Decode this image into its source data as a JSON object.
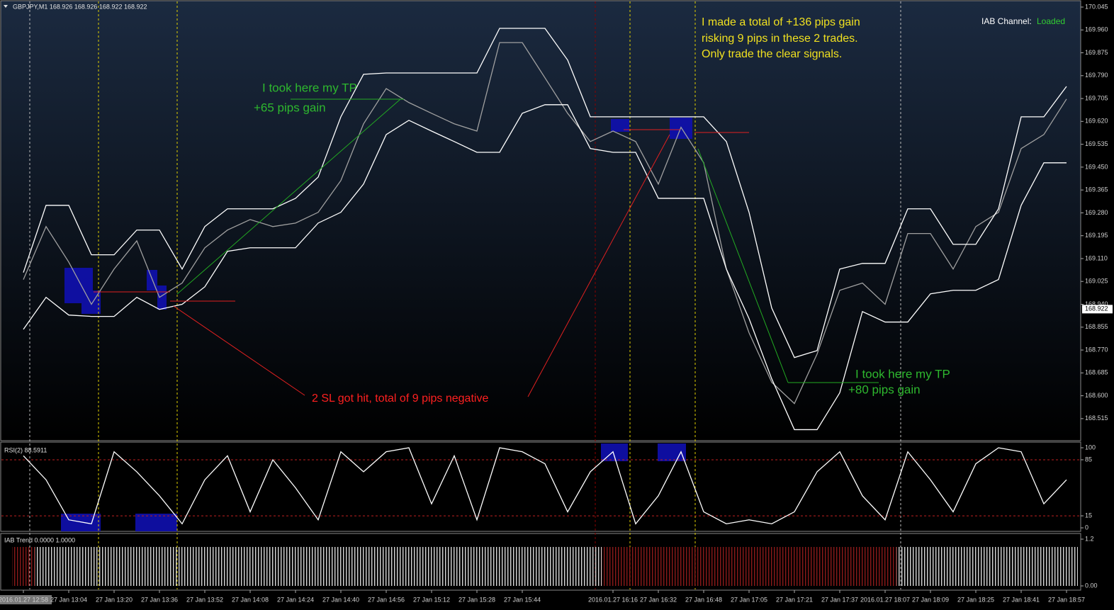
{
  "chart_data": [
    {
      "type": "line",
      "title": "GBPJPY,M1  168.926 168.926 168.922 168.922",
      "indicator_label": "IAB Channel:",
      "indicator_status": "Loaded",
      "summary_note": [
        "I made a total of +136 pips gain",
        "risking 9 pips in these 2 trades.",
        "Only trade the clear signals."
      ],
      "tp_note_1": [
        "I took here my TP",
        "+65 pips gain"
      ],
      "sl_note": "2 SL got hit, total of 9 pips negative",
      "tp_note_2": [
        "I took here my TP",
        "+80 pips gain"
      ],
      "last_price": 168.922,
      "categories": [
        "2016.01.27 12:58",
        null,
        "27 Jan 13:04",
        null,
        "27 Jan 13:20",
        null,
        "27 Jan 13:36",
        null,
        "27 Jan 13:52",
        null,
        "27 Jan 14:08",
        null,
        "27 Jan 14:24",
        null,
        "27 Jan 14:40",
        null,
        "27 Jan 14:56",
        null,
        "27 Jan 15:12",
        null,
        "27 Jan 15:28",
        null,
        "27 Jan 15:44",
        null,
        null,
        null,
        "2016.01.27 16:16",
        null,
        "27 Jan 16:32",
        null,
        "27 Jan 16:48",
        null,
        "27 Jan 17:05",
        null,
        "27 Jan 17:21",
        null,
        "27 Jan 17:37",
        null,
        "2016.01.27 18:07",
        null,
        "27 Jan 18:09",
        null,
        "27 Jan 18:25",
        null,
        "27 Jan 18:41",
        null,
        "27 Jan 18:57"
      ],
      "series": [
        {
          "color": "#a0a0a0",
          "values": [
            169.032,
            169.229,
            169.097,
            168.94,
            169.071,
            169.176,
            168.966,
            169.019,
            169.15,
            169.216,
            169.255,
            169.229,
            169.242,
            169.282,
            169.4,
            169.611,
            169.742,
            169.69,
            169.65,
            169.611,
            169.584,
            169.913,
            169.913,
            169.782,
            169.65,
            169.545,
            169.584,
            169.545,
            169.387,
            169.598,
            169.466,
            169.071,
            168.834,
            168.65,
            168.571,
            168.755,
            168.992,
            169.019,
            168.94,
            169.203,
            169.203,
            169.071,
            169.229,
            169.282,
            169.519,
            169.571,
            169.703
          ]
        },
        {
          "color": "#ffffff",
          "values": [
            169.058,
            169.308,
            169.308,
            169.124,
            169.124,
            169.216,
            169.216,
            169.071,
            169.229,
            169.295,
            169.295,
            169.295,
            169.334,
            169.413,
            169.637,
            169.795,
            169.8,
            169.8,
            169.8,
            169.8,
            169.8,
            169.966,
            169.966,
            169.966,
            169.848,
            169.637,
            169.637,
            169.637,
            169.637,
            169.637,
            169.637,
            169.545,
            169.282,
            168.926,
            168.742,
            168.768,
            169.071,
            169.092,
            169.092,
            169.295,
            169.295,
            169.163,
            169.163,
            169.295,
            169.637,
            169.637,
            169.75
          ]
        },
        {
          "color": "#ffffff",
          "values": [
            168.847,
            168.966,
            168.9,
            168.895,
            168.895,
            168.966,
            168.921,
            168.94,
            169.005,
            169.137,
            169.15,
            169.15,
            169.15,
            169.242,
            169.282,
            169.387,
            169.571,
            169.624,
            169.584,
            169.545,
            169.505,
            169.505,
            169.65,
            169.682,
            169.682,
            169.519,
            169.505,
            169.505,
            169.334,
            169.334,
            169.334,
            169.071,
            168.887,
            168.663,
            168.474,
            168.474,
            168.611,
            168.913,
            168.874,
            168.874,
            168.979,
            168.992,
            168.992,
            169.032,
            169.308,
            169.466,
            169.466
          ]
        }
      ],
      "ylim": [
        168.433,
        170.066
      ],
      "yticks": [
        168.515,
        {
          "value": 168.6,
          "label": "168.600"
        },
        168.685,
        {
          "value": 168.77,
          "label": "168.770"
        },
        168.855,
        {
          "value": 168.94,
          "label": "168.940"
        },
        169.025,
        {
          "value": 169.11,
          "label": "169.110"
        },
        169.195,
        {
          "value": 169.28,
          "label": "169.280"
        },
        169.365,
        {
          "value": 169.45,
          "label": "169.450"
        },
        169.535,
        {
          "value": 169.62,
          "label": "169.620"
        },
        169.705,
        {
          "value": 169.79,
          "label": "169.790"
        },
        169.875,
        {
          "value": 169.96,
          "label": "169.960"
        },
        170.045
      ]
    },
    {
      "type": "line",
      "title": "RSI(2) 88.5911",
      "color": "#ffffff",
      "values": [
        90,
        60,
        10,
        5,
        95,
        70,
        40,
        5,
        60,
        90,
        20,
        85,
        50,
        10,
        95,
        70,
        95,
        100,
        30,
        90,
        10,
        100,
        95,
        80,
        20,
        70,
        95,
        5,
        40,
        95,
        20,
        5,
        10,
        5,
        20,
        70,
        95,
        40,
        10,
        95,
        60,
        20,
        80,
        100,
        95,
        30,
        60
      ],
      "ylim": [
        -4.4,
        106.2
      ],
      "yticks": [
        0,
        15,
        85,
        100
      ],
      "levels": [
        15,
        85
      ],
      "level_color": "#c02020"
    },
    {
      "type": "bar",
      "title": "IAB Trend 0.0000 1.0000",
      "values": [
        1,
        1,
        1,
        1,
        1,
        1,
        1,
        1,
        1,
        1,
        1,
        1,
        1,
        1,
        1,
        1,
        1,
        1,
        1,
        1,
        1,
        1,
        1,
        1,
        1,
        1,
        1,
        1,
        1,
        1,
        1,
        1,
        1,
        1,
        1,
        1,
        1,
        1,
        1,
        1,
        1,
        1,
        1,
        1,
        1,
        1,
        1
      ],
      "colors": [
        "#8b1a1a",
        "#d8d8d8",
        "#d8d8d8",
        "#d8d8d8",
        "#d8d8d8",
        "#d8d8d8",
        "#d8d8d8",
        "#d8d8d8",
        "#d8d8d8",
        "#d8d8d8",
        "#d8d8d8",
        "#d8d8d8",
        "#d8d8d8",
        "#d8d8d8",
        "#d8d8d8",
        "#d8d8d8",
        "#d8d8d8",
        "#d8d8d8",
        "#d8d8d8",
        "#d8d8d8",
        "#d8d8d8",
        "#d8d8d8",
        "#d8d8d8",
        "#d8d8d8",
        "#d8d8d8",
        "#d8d8d8",
        "#8b1a1a",
        "#8b1a1a",
        "#8b1a1a",
        "#8b1a1a",
        "#8b1a1a",
        "#8b1a1a",
        "#8b1a1a",
        "#8b1a1a",
        "#8b1a1a",
        "#8b1a1a",
        "#8b1a1a",
        "#8b1a1a",
        "#8b1a1a",
        "#d8d8d8",
        "#d8d8d8",
        "#d8d8d8",
        "#d8d8d8",
        "#d8d8d8",
        "#d8d8d8",
        "#d8d8d8",
        "#d8d8d8"
      ],
      "ylim": [
        -0.091,
        1.309
      ],
      "yticks": [
        {
          "value": 0,
          "label": "0.00"
        },
        1.2
      ]
    }
  ]
}
